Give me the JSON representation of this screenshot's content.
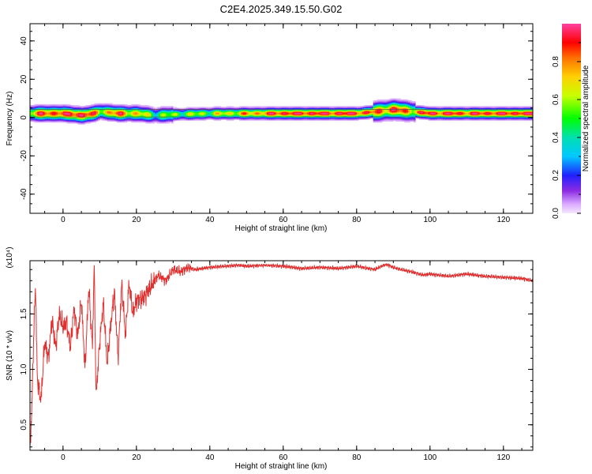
{
  "title": "C2E4.2025.349.15.50.G02",
  "chart_data": [
    {
      "type": "heatmap",
      "xlabel": "Height of straight line (km)",
      "ylabel": "Frequency (Hz)",
      "xlim": [
        -9,
        128
      ],
      "ylim": [
        -50,
        49
      ],
      "xticks": [
        0,
        20,
        40,
        60,
        80,
        100,
        120
      ],
      "yticks": [
        -40,
        -20,
        0,
        20,
        40
      ],
      "colorbar": {
        "label": "Normalized spectral amplitude",
        "range": [
          0,
          1
        ],
        "ticks": [
          0.0,
          0.2,
          0.4,
          0.6,
          0.8
        ],
        "tick_labels": [
          "0.0",
          "0.2",
          "0.4",
          "0.6",
          "0.8"
        ]
      },
      "ridge": {
        "x": [
          -9,
          -5,
          0,
          5,
          8,
          10,
          15,
          20,
          25,
          30,
          40,
          50,
          60,
          70,
          80,
          85,
          90,
          95,
          100,
          110,
          120,
          128
        ],
        "center_freq": [
          2,
          2,
          2,
          1,
          2,
          3,
          2,
          2,
          1,
          1.5,
          2,
          2,
          2,
          2,
          2,
          3,
          4,
          3,
          2,
          2,
          2,
          2
        ],
        "peak_amplitude": [
          0.7,
          0.9,
          0.9,
          1.0,
          0.8,
          0.7,
          0.85,
          0.7,
          0.5,
          0.55,
          0.6,
          0.75,
          0.95,
          0.95,
          0.95,
          0.8,
          0.9,
          0.75,
          0.95,
          0.9,
          0.95,
          0.95
        ]
      }
    },
    {
      "type": "line",
      "xlabel": "Height of straight line (km)",
      "ylabel": "SNR (10 * v/v)",
      "y_multiplier": "(x10⁴)",
      "xlim": [
        -9,
        128
      ],
      "ylim": [
        0.27,
        1.98
      ],
      "xticks": [
        0,
        20,
        40,
        60,
        80,
        100,
        120
      ],
      "yticks": [
        0.5,
        1.0,
        1.5
      ],
      "ytick_labels": [
        "0.5",
        "1.0",
        "1.5"
      ],
      "color": "#e03030",
      "x": [
        -9,
        -8.5,
        -8,
        -7.5,
        -7,
        -6,
        -5,
        -4,
        -3,
        -2,
        -1,
        0,
        1,
        2,
        3,
        4,
        5,
        6,
        7,
        8,
        8.5,
        9,
        10,
        11,
        12,
        13,
        14,
        15,
        16,
        17,
        18,
        19,
        20,
        22,
        24,
        26,
        28,
        30,
        32,
        34,
        36,
        40,
        44,
        48,
        50,
        55,
        60,
        65,
        70,
        75,
        80,
        85,
        88,
        90,
        92,
        95,
        98,
        100,
        105,
        110,
        115,
        120,
        125,
        128
      ],
      "y": [
        0.27,
        0.65,
        1.3,
        1.78,
        0.9,
        0.72,
        1.25,
        1.1,
        1.45,
        1.2,
        1.5,
        1.38,
        1.42,
        1.2,
        1.55,
        1.3,
        1.62,
        1.0,
        1.75,
        1.2,
        1.95,
        0.75,
        1.25,
        1.6,
        1.05,
        1.4,
        1.7,
        1.1,
        1.78,
        1.3,
        1.78,
        1.5,
        1.62,
        1.65,
        1.75,
        1.85,
        1.8,
        1.9,
        1.88,
        1.92,
        1.9,
        1.92,
        1.93,
        1.94,
        1.93,
        1.94,
        1.93,
        1.91,
        1.92,
        1.91,
        1.93,
        1.9,
        1.95,
        1.92,
        1.9,
        1.88,
        1.85,
        1.86,
        1.84,
        1.86,
        1.84,
        1.83,
        1.82,
        1.8
      ]
    }
  ]
}
